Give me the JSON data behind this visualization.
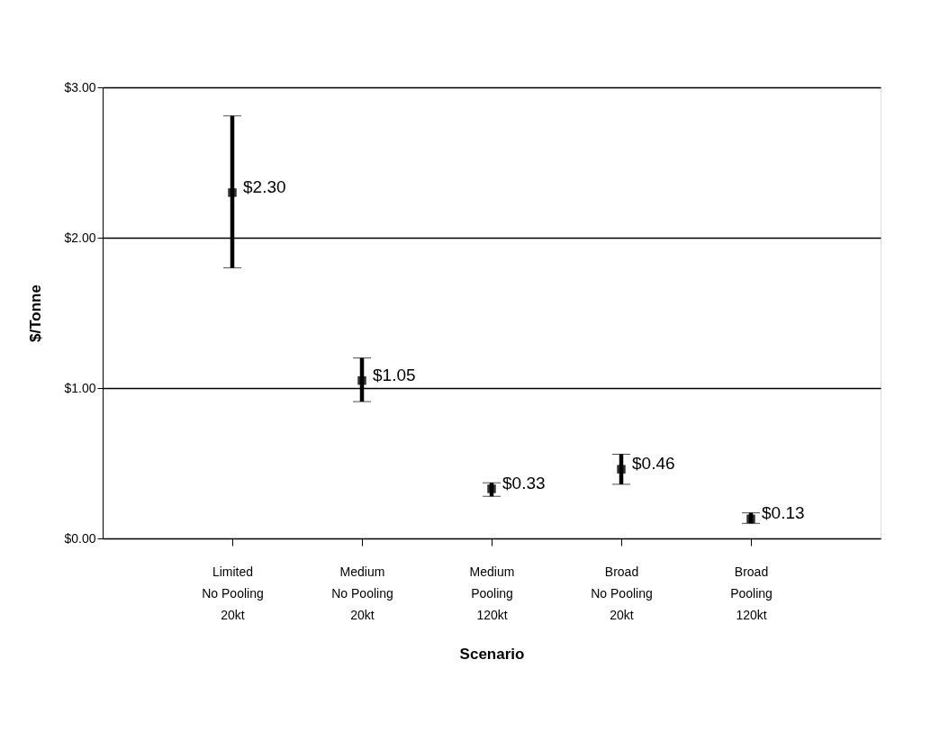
{
  "chart_data": {
    "type": "scatter",
    "xlabel": "Scenario",
    "ylabel": "$/Tonne",
    "categories": [
      "Limited\nNo Pooling\n20kt",
      "Medium\nNo Pooling\n20kt",
      "Medium\nPooling\n120kt",
      "Broad\nNo Pooling\n20kt",
      "Broad\nPooling\n120kt"
    ],
    "series": [
      {
        "color": "#333333",
        "values": [
          2.3,
          1.05,
          0.33,
          0.46,
          0.13
        ],
        "value_labels": [
          "$2.30",
          "$1.05",
          "$0.33",
          "$0.46",
          "$0.13"
        ],
        "errors": [
          [
            1.8,
            2.81
          ],
          [
            0.91,
            1.2
          ],
          [
            0.28,
            0.37
          ],
          [
            0.36,
            0.56
          ],
          [
            0.1,
            0.17
          ]
        ]
      }
    ],
    "ylim": [
      0,
      3
    ],
    "yticks": [
      {
        "value": 0,
        "label": "$0.00"
      },
      {
        "value": 1,
        "label": "$1.00"
      },
      {
        "value": 2,
        "label": "$2.00"
      },
      {
        "value": 3,
        "label": "$3.00"
      }
    ],
    "grid": "y",
    "marker": "square",
    "legend": false
  }
}
